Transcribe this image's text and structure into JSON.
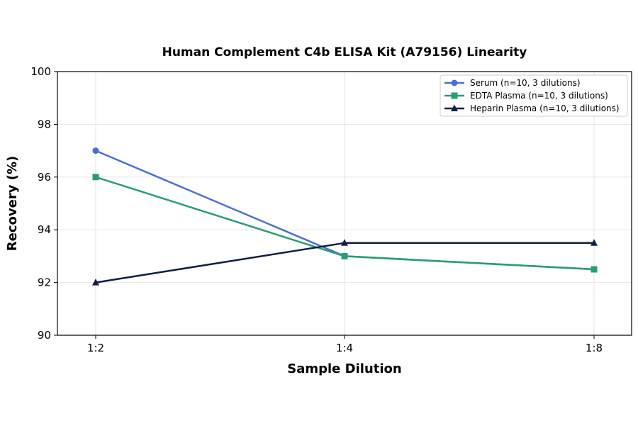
{
  "chart_data": {
    "type": "line",
    "title": "Human Complement C4b ELISA Kit (A79156) Linearity",
    "xlabel": "Sample Dilution",
    "ylabel": "Recovery (%)",
    "categories": [
      "1:2",
      "1:4",
      "1:8"
    ],
    "ylim": [
      90,
      100
    ],
    "yticks": [
      90,
      92,
      94,
      96,
      98,
      100
    ],
    "grid": true,
    "legend_position": "top-right",
    "series": [
      {
        "name": "Serum (n=10, 3 dilutions)",
        "values": [
          97,
          93,
          92.5
        ],
        "color": "#4a6fd4",
        "marker": "circle"
      },
      {
        "name": "EDTA Plasma (n=10, 3 dilutions)",
        "values": [
          96,
          93,
          92.5
        ],
        "color": "#2a9d75",
        "marker": "square"
      },
      {
        "name": "Heparin Plasma (n=10, 3 dilutions)",
        "values": [
          92,
          93.5,
          93.5
        ],
        "color": "#111d4a",
        "marker": "triangle"
      }
    ]
  }
}
